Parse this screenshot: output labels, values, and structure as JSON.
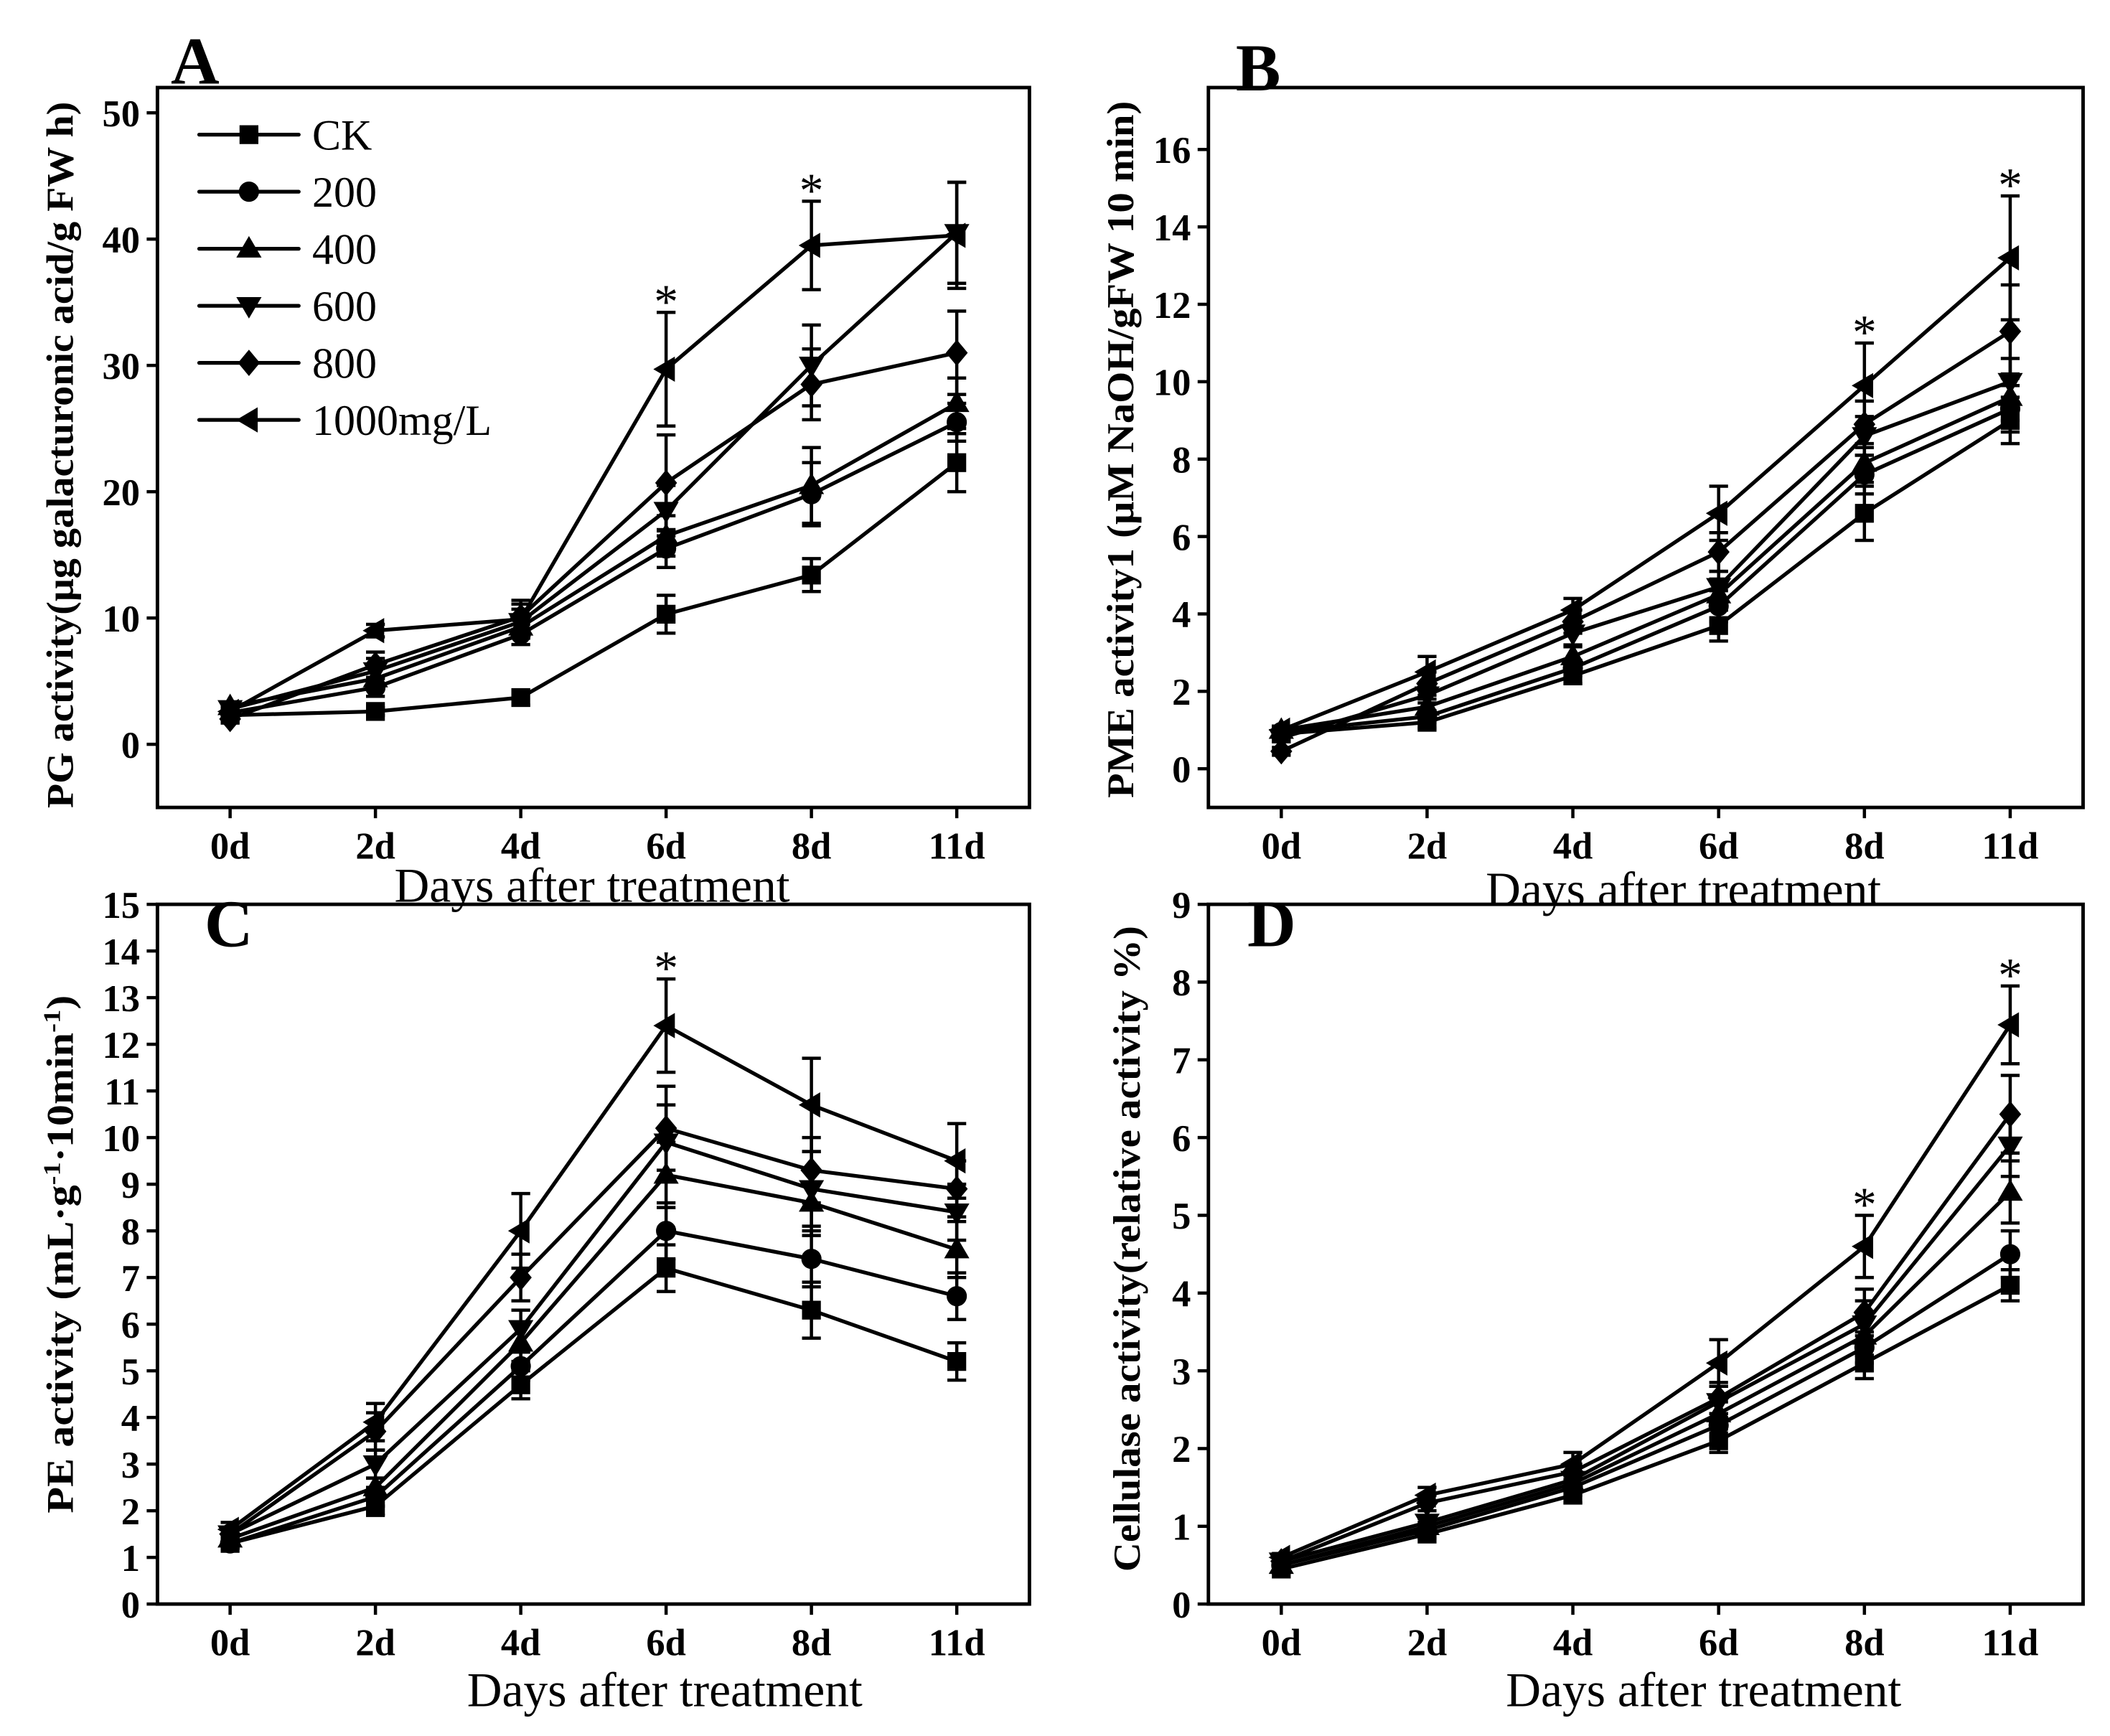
{
  "chart_data": [
    {
      "type": "line",
      "panel": "A",
      "ylabel": "PG activity(μg galacturonic acid/g FW h)",
      "xlabel": "Days after treatment",
      "categories": [
        "0d",
        "2d",
        "4d",
        "6d",
        "8d",
        "11d"
      ],
      "ylim": [
        -5,
        52
      ],
      "yticks": [
        0,
        10,
        20,
        30,
        40,
        50
      ],
      "grid": false,
      "legend": {
        "position": "top-left"
      },
      "series": [
        {
          "name": "CK",
          "marker": "square",
          "values": [
            2.3,
            2.6,
            3.7,
            10.3,
            13.4,
            22.3
          ],
          "errors": [
            0.3,
            0.3,
            0.6,
            1.5,
            1.3,
            2.3
          ]
        },
        {
          "name": "200",
          "marker": "circle",
          "values": [
            2.5,
            4.5,
            8.7,
            15.5,
            19.8,
            25.5
          ],
          "errors": [
            0.3,
            0.7,
            0.8,
            1.5,
            2.5,
            1.5
          ]
        },
        {
          "name": "400",
          "marker": "triangle-up",
          "values": [
            3.0,
            5.2,
            9.3,
            16.5,
            20.5,
            27.0
          ],
          "errors": [
            0.3,
            0.8,
            0.9,
            1.6,
            3.0,
            2.0
          ]
        },
        {
          "name": "600",
          "marker": "triangle-down",
          "values": [
            2.8,
            5.8,
            9.7,
            18.5,
            30.0,
            40.5
          ],
          "errors": [
            0.3,
            1.0,
            1.0,
            2.0,
            3.2,
            4.0
          ]
        },
        {
          "name": "800",
          "marker": "diamond",
          "values": [
            2.0,
            6.3,
            10.1,
            20.7,
            28.5,
            31.0
          ],
          "errors": [
            0.3,
            1.0,
            1.0,
            3.8,
            2.8,
            3.3
          ]
        },
        {
          "name": "1000mg/L",
          "marker": "triangle-left",
          "values": [
            2.6,
            9.0,
            9.9,
            29.7,
            39.5,
            40.3
          ],
          "errors": [
            0.3,
            0.5,
            1.5,
            4.5,
            3.5,
            4.2
          ]
        }
      ],
      "annotations": [
        {
          "x": "6d",
          "text": "*"
        },
        {
          "x": "8d",
          "text": "*"
        }
      ]
    },
    {
      "type": "line",
      "panel": "B",
      "ylabel": "PME activity1 (μM NaOH/gFW 10 min)",
      "xlabel": "Days after treatment",
      "categories": [
        "0d",
        "2d",
        "4d",
        "6d",
        "8d",
        "11d"
      ],
      "ylim": [
        -1,
        17.6
      ],
      "yticks": [
        0,
        2,
        4,
        6,
        8,
        10,
        12,
        14,
        16
      ],
      "grid": false,
      "series": [
        {
          "name": "CK",
          "marker": "square",
          "values": [
            0.9,
            1.2,
            2.4,
            3.7,
            6.6,
            9.0
          ],
          "errors": [
            0.1,
            0.15,
            0.2,
            0.4,
            0.7,
            0.6
          ]
        },
        {
          "name": "200",
          "marker": "circle",
          "values": [
            0.95,
            1.35,
            2.6,
            4.2,
            7.6,
            9.3
          ],
          "errors": [
            0.1,
            0.15,
            0.2,
            0.4,
            0.5,
            0.6
          ]
        },
        {
          "name": "400",
          "marker": "triangle-up",
          "values": [
            1.0,
            1.6,
            2.9,
            4.5,
            7.9,
            9.6
          ],
          "errors": [
            0.1,
            0.2,
            0.25,
            0.4,
            0.5,
            0.6
          ]
        },
        {
          "name": "600",
          "marker": "triangle-down",
          "values": [
            0.8,
            1.9,
            3.5,
            4.7,
            8.6,
            10.0
          ],
          "errors": [
            0.1,
            0.2,
            0.3,
            0.4,
            0.5,
            0.6
          ]
        },
        {
          "name": "800",
          "marker": "diamond",
          "values": [
            0.45,
            2.2,
            3.8,
            5.6,
            8.9,
            11.3
          ],
          "errors": [
            0.1,
            0.3,
            0.3,
            0.5,
            0.6,
            1.2
          ]
        },
        {
          "name": "1000mg/L",
          "marker": "triangle-left",
          "values": [
            1.0,
            2.5,
            4.1,
            6.6,
            9.9,
            13.2
          ],
          "errors": [
            0.1,
            0.4,
            0.3,
            0.7,
            1.1,
            1.6
          ]
        }
      ],
      "annotations": [
        {
          "x": "8d",
          "text": "*"
        },
        {
          "x": "11d",
          "text": "*"
        }
      ]
    },
    {
      "type": "line",
      "panel": "C",
      "ylabel_parts": [
        {
          "t": "PE activity (mL·g"
        },
        {
          "t": "-1",
          "sup": true
        },
        {
          "t": "·10min"
        },
        {
          "t": "-1",
          "sup": true
        },
        {
          "t": ")"
        }
      ],
      "xlabel": "Days after treatment",
      "categories": [
        "0d",
        "2d",
        "4d",
        "6d",
        "8d",
        "11d"
      ],
      "ylim": [
        0,
        15
      ],
      "yticks": [
        0,
        1,
        2,
        3,
        4,
        5,
        6,
        7,
        8,
        9,
        10,
        11,
        12,
        13,
        14,
        15
      ],
      "grid": false,
      "series": [
        {
          "name": "CK",
          "marker": "square",
          "values": [
            1.3,
            2.1,
            4.7,
            7.2,
            6.3,
            5.2
          ],
          "errors": [
            0.1,
            0.2,
            0.3,
            0.5,
            0.6,
            0.4
          ]
        },
        {
          "name": "200",
          "marker": "circle",
          "values": [
            1.3,
            2.3,
            5.1,
            8.0,
            7.4,
            6.6
          ],
          "errors": [
            0.1,
            0.2,
            0.3,
            0.6,
            0.6,
            0.5
          ]
        },
        {
          "name": "400",
          "marker": "triangle-up",
          "values": [
            1.4,
            2.5,
            5.6,
            9.2,
            8.6,
            7.6
          ],
          "errors": [
            0.1,
            0.2,
            0.4,
            0.7,
            0.7,
            0.6
          ]
        },
        {
          "name": "600",
          "marker": "triangle-down",
          "values": [
            1.5,
            3.0,
            5.9,
            9.9,
            8.9,
            8.4
          ],
          "errors": [
            0.1,
            0.3,
            0.4,
            0.8,
            0.8,
            0.6
          ]
        },
        {
          "name": "800",
          "marker": "diamond",
          "values": [
            1.5,
            3.7,
            7.0,
            10.2,
            9.3,
            8.9
          ],
          "errors": [
            0.1,
            0.4,
            0.5,
            0.9,
            0.7,
            0.6
          ]
        },
        {
          "name": "1000mg/L",
          "marker": "triangle-left",
          "values": [
            1.6,
            3.9,
            8.0,
            12.4,
            10.7,
            9.5
          ],
          "errors": [
            0.15,
            0.4,
            0.8,
            1.0,
            1.0,
            0.8
          ]
        }
      ],
      "annotations": [
        {
          "x": "6d",
          "text": "*"
        }
      ]
    },
    {
      "type": "line",
      "panel": "D",
      "ylabel": "Cellulase activity(relative activity %)",
      "xlabel": "Days after treatment",
      "categories": [
        "0d",
        "2d",
        "4d",
        "6d",
        "8d",
        "11d"
      ],
      "ylim": [
        0,
        9
      ],
      "yticks": [
        0,
        1,
        2,
        3,
        4,
        5,
        6,
        7,
        8,
        9
      ],
      "grid": false,
      "series": [
        {
          "name": "CK",
          "marker": "square",
          "values": [
            0.45,
            0.9,
            1.4,
            2.1,
            3.1,
            4.1
          ],
          "errors": [
            0.05,
            0.05,
            0.1,
            0.15,
            0.2,
            0.2
          ]
        },
        {
          "name": "200",
          "marker": "circle",
          "values": [
            0.5,
            0.95,
            1.5,
            2.3,
            3.3,
            4.5
          ],
          "errors": [
            0.05,
            0.05,
            0.1,
            0.15,
            0.2,
            0.3
          ]
        },
        {
          "name": "400",
          "marker": "triangle-up",
          "values": [
            0.5,
            1.0,
            1.55,
            2.45,
            3.45,
            5.3
          ],
          "errors": [
            0.05,
            0.05,
            0.1,
            0.15,
            0.25,
            0.4
          ]
        },
        {
          "name": "600",
          "marker": "triangle-down",
          "values": [
            0.55,
            1.05,
            1.6,
            2.6,
            3.6,
            5.9
          ],
          "errors": [
            0.05,
            0.05,
            0.1,
            0.2,
            0.3,
            0.4
          ]
        },
        {
          "name": "800",
          "marker": "diamond",
          "values": [
            0.55,
            1.3,
            1.7,
            2.65,
            3.75,
            6.3
          ],
          "errors": [
            0.05,
            0.1,
            0.1,
            0.2,
            0.3,
            0.5
          ]
        },
        {
          "name": "1000mg/L",
          "marker": "triangle-left",
          "values": [
            0.6,
            1.4,
            1.8,
            3.1,
            4.6,
            7.45
          ],
          "errors": [
            0.05,
            0.1,
            0.15,
            0.3,
            0.4,
            0.5
          ]
        }
      ],
      "annotations": [
        {
          "x": "8d",
          "text": "*"
        },
        {
          "x": "11d",
          "text": "*"
        }
      ]
    }
  ]
}
